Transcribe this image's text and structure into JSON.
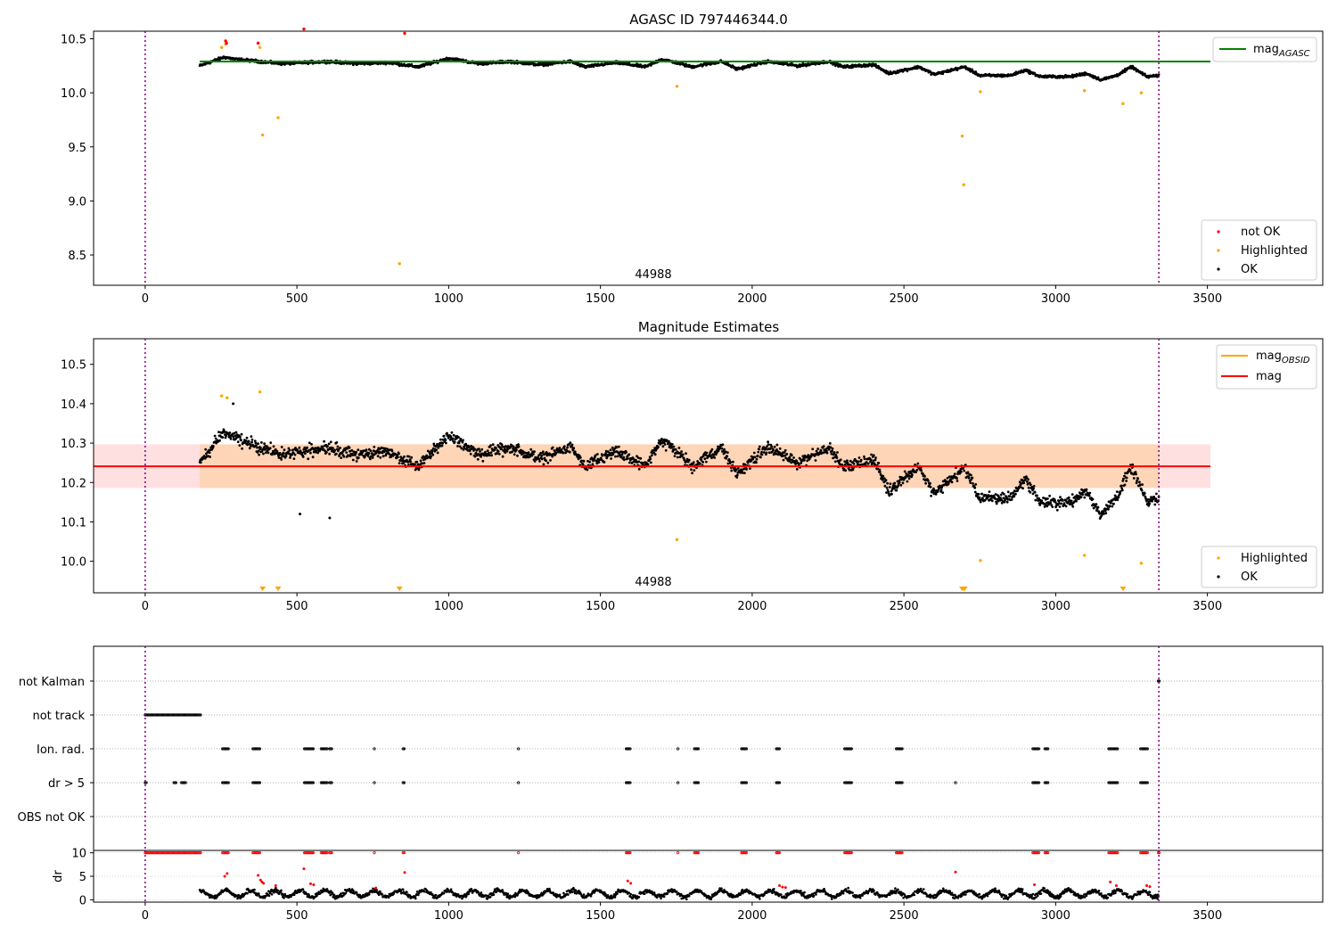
{
  "chart_data": [
    {
      "type": "scatter",
      "title": "AGASC ID 797446344.0",
      "xlabel": "",
      "ylabel": "",
      "xlim": [
        -170,
        3880
      ],
      "ylim": [
        8.22,
        10.57
      ],
      "xticks": [
        0,
        500,
        1000,
        1500,
        2000,
        2500,
        3000,
        3500
      ],
      "yticks": [
        8.5,
        9.0,
        9.5,
        10.0,
        10.5
      ],
      "ytick_labels": [
        "8.5",
        "9.0",
        "9.5",
        "10.0",
        "10.5"
      ],
      "annotation": "44988",
      "vlines": [
        0,
        3340
      ],
      "hline": {
        "name": "mag_AGASC",
        "value": 10.29,
        "x": [
          180,
          3510
        ],
        "color": "#008000"
      },
      "legend_upper": {
        "placement": "top-right",
        "entries": [
          {
            "label": "mag",
            "sub": "AGASC",
            "color": "#008000"
          }
        ]
      },
      "legend_lower": {
        "placement": "bottom-right",
        "entries": [
          {
            "label": "not OK",
            "color": "#ff0000"
          },
          {
            "label": "Highlighted",
            "color": "#ffa500"
          },
          {
            "label": "OK",
            "color": "#000000"
          }
        ]
      },
      "series": [
        {
          "name": "OK",
          "color": "#000000",
          "trend": [
            [
              180,
              10.25
            ],
            [
              260,
              10.33
            ],
            [
              300,
              10.31
            ],
            [
              380,
              10.29
            ],
            [
              450,
              10.27
            ],
            [
              600,
              10.29
            ],
            [
              700,
              10.27
            ],
            [
              800,
              10.28
            ],
            [
              900,
              10.24
            ],
            [
              1000,
              10.32
            ],
            [
              1100,
              10.27
            ],
            [
              1200,
              10.29
            ],
            [
              1300,
              10.26
            ],
            [
              1400,
              10.29
            ],
            [
              1450,
              10.24
            ],
            [
              1550,
              10.28
            ],
            [
              1650,
              10.24
            ],
            [
              1700,
              10.31
            ],
            [
              1750,
              10.28
            ],
            [
              1800,
              10.24
            ],
            [
              1900,
              10.29
            ],
            [
              1950,
              10.22
            ],
            [
              2050,
              10.29
            ],
            [
              2150,
              10.25
            ],
            [
              2250,
              10.29
            ],
            [
              2300,
              10.24
            ],
            [
              2400,
              10.26
            ],
            [
              2450,
              10.18
            ],
            [
              2550,
              10.24
            ],
            [
              2600,
              10.17
            ],
            [
              2700,
              10.24
            ],
            [
              2750,
              10.16
            ],
            [
              2850,
              10.16
            ],
            [
              2900,
              10.21
            ],
            [
              2950,
              10.15
            ],
            [
              3050,
              10.15
            ],
            [
              3100,
              10.18
            ],
            [
              3150,
              10.12
            ],
            [
              3200,
              10.16
            ],
            [
              3250,
              10.24
            ],
            [
              3300,
              10.15
            ],
            [
              3340,
              10.16
            ]
          ]
        },
        {
          "name": "Highlighted",
          "color": "#ffa500",
          "points": [
            [
              252,
              10.42
            ],
            [
              265,
              10.45
            ],
            [
              378,
              10.42
            ],
            [
              387,
              9.61
            ],
            [
              438,
              9.77
            ],
            [
              838,
              8.42
            ],
            [
              1752,
              10.06
            ],
            [
              2692,
              9.6
            ],
            [
              2697,
              9.15
            ],
            [
              2752,
              10.01
            ],
            [
              3095,
              10.02
            ],
            [
              3222,
              9.9
            ],
            [
              3282,
              10.0
            ]
          ]
        },
        {
          "name": "not OK",
          "color": "#ff0000",
          "points": [
            [
              265,
              10.48
            ],
            [
              268,
              10.46
            ],
            [
              372,
              10.46
            ],
            [
              523,
              10.59
            ],
            [
              855,
              10.55
            ]
          ]
        }
      ]
    },
    {
      "type": "scatter",
      "title": "Magnitude Estimates",
      "xlabel": "",
      "ylabel": "",
      "xlim": [
        -170,
        3880
      ],
      "ylim": [
        9.92,
        10.565
      ],
      "xticks": [
        0,
        500,
        1000,
        1500,
        2000,
        2500,
        3000,
        3500
      ],
      "yticks": [
        10.0,
        10.1,
        10.2,
        10.3,
        10.4,
        10.5
      ],
      "ytick_labels": [
        "10.0",
        "10.1",
        "10.2",
        "10.3",
        "10.4",
        "10.5"
      ],
      "annotation": "44988",
      "vlines": [
        0,
        3340
      ],
      "mag_line": {
        "name": "mag",
        "value": 10.241,
        "band": [
          10.186,
          10.297
        ],
        "x": [
          -170,
          3510
        ],
        "color": "#ff0000"
      },
      "mag_obsid_band": {
        "name": "mag_OBSID",
        "x": [
          180,
          3340
        ],
        "band": [
          10.186,
          10.297
        ],
        "color": "#ffa500"
      },
      "legend_upper": {
        "placement": "top-right",
        "entries": [
          {
            "label": "mag",
            "sub": "OBSID",
            "color": "#ffa500"
          },
          {
            "label": "mag",
            "sub": "",
            "color": "#ff0000"
          }
        ]
      },
      "legend_lower": {
        "placement": "bottom-right",
        "entries": [
          {
            "label": "Highlighted",
            "color": "#ffa500"
          },
          {
            "label": "OK",
            "color": "#000000"
          }
        ]
      },
      "series": [
        {
          "name": "OK",
          "color": "#000000",
          "extra_points": [
            [
              290,
              10.4
            ],
            [
              510,
              10.12
            ],
            [
              608,
              10.11
            ]
          ]
        },
        {
          "name": "Highlighted",
          "color": "#ffa500",
          "points": [
            [
              252,
              10.42
            ],
            [
              270,
              10.415
            ],
            [
              378,
              10.43
            ],
            [
              1752,
              10.055
            ],
            [
              2752,
              10.002
            ],
            [
              3095,
              10.015
            ],
            [
              3282,
              9.995
            ]
          ]
        },
        {
          "name": "Highlighted (below axis)",
          "color": "#ffa500",
          "markers_at_x": [
            387,
            438,
            838,
            2692,
            2697,
            2700,
            3222
          ]
        }
      ]
    },
    {
      "type": "scatter",
      "title": "",
      "xlim": [
        -170,
        3880
      ],
      "categories": [
        "not Kalman",
        "not track",
        "Ion. rad.",
        "dr > 5",
        "OBS not OK"
      ],
      "vlines": [
        0,
        3340
      ],
      "series": [
        {
          "name": "not Kalman",
          "segments": [
            [
              3338,
              3342
            ]
          ]
        },
        {
          "name": "not track",
          "segments": [
            [
              0,
              185
            ]
          ]
        },
        {
          "name": "Ion. rad.",
          "segments": [
            [
              255,
              275
            ],
            [
              355,
              380
            ],
            [
              525,
              555
            ],
            [
              580,
              600
            ],
            [
              608,
              615
            ],
            [
              755,
              757
            ],
            [
              850,
              855
            ],
            [
              1230,
              1233
            ],
            [
              1585,
              1600
            ],
            [
              1755,
              1758
            ],
            [
              1810,
              1825
            ],
            [
              1965,
              1982
            ],
            [
              2080,
              2092
            ],
            [
              2305,
              2330
            ],
            [
              2475,
              2495
            ],
            [
              2925,
              2945
            ],
            [
              2965,
              2975
            ],
            [
              3175,
              3205
            ],
            [
              3280,
              3305
            ]
          ]
        },
        {
          "name": "dr > 5",
          "segments": [
            [
              0,
              5
            ],
            [
              95,
              102
            ],
            [
              120,
              135
            ],
            [
              255,
              275
            ],
            [
              355,
              380
            ],
            [
              525,
              555
            ],
            [
              580,
              600
            ],
            [
              608,
              615
            ],
            [
              755,
              757
            ],
            [
              850,
              855
            ],
            [
              1230,
              1233
            ],
            [
              1585,
              1600
            ],
            [
              1755,
              1758
            ],
            [
              1810,
              1825
            ],
            [
              1965,
              1982
            ],
            [
              2080,
              2092
            ],
            [
              2305,
              2330
            ],
            [
              2475,
              2495
            ],
            [
              2670,
              2672
            ],
            [
              2925,
              2945
            ],
            [
              2965,
              2975
            ],
            [
              3175,
              3205
            ],
            [
              3280,
              3305
            ]
          ]
        },
        {
          "name": "OBS not OK",
          "segments": []
        }
      ]
    },
    {
      "type": "scatter",
      "title": "",
      "ylabel": "dr",
      "xlim": [
        -170,
        3880
      ],
      "ylim": [
        -0.5,
        10.5
      ],
      "xticks": [
        0,
        500,
        1000,
        1500,
        2000,
        2500,
        3000,
        3500
      ],
      "yticks": [
        0,
        5,
        10
      ],
      "ytick_labels": [
        "0",
        "5",
        "10"
      ],
      "vlines": [
        0,
        3340
      ],
      "series": [
        {
          "name": "OK",
          "color": "#000000",
          "x_range": [
            180,
            3340
          ],
          "typical": [
            0.3,
            3.0
          ]
        },
        {
          "name": "not OK",
          "color": "#ff0000",
          "clipped_at_10": [
            [
              0,
              185
            ],
            [
              255,
              275
            ],
            [
              355,
              380
            ],
            [
              525,
              555
            ],
            [
              580,
              600
            ],
            [
              608,
              615
            ],
            [
              755,
              757
            ],
            [
              850,
              855
            ],
            [
              1230,
              1233
            ],
            [
              1585,
              1600
            ],
            [
              1755,
              1758
            ],
            [
              1810,
              1825
            ],
            [
              1965,
              1982
            ],
            [
              2080,
              2092
            ],
            [
              2305,
              2330
            ],
            [
              2475,
              2495
            ],
            [
              2925,
              2945
            ],
            [
              2965,
              2975
            ],
            [
              3175,
              3205
            ],
            [
              3280,
              3305
            ],
            [
              3338,
              3342
            ]
          ],
          "points": [
            [
              262,
              5.0
            ],
            [
              270,
              5.6
            ],
            [
              372,
              5.2
            ],
            [
              380,
              4.2
            ],
            [
              385,
              3.8
            ],
            [
              390,
              3.5
            ],
            [
              430,
              3.0
            ],
            [
              523,
              6.6
            ],
            [
              545,
              3.4
            ],
            [
              555,
              3.2
            ],
            [
              760,
              2.5
            ],
            [
              855,
              5.8
            ],
            [
              1590,
              4.0
            ],
            [
              1600,
              3.5
            ],
            [
              2090,
              3.0
            ],
            [
              2100,
              2.7
            ],
            [
              2110,
              2.6
            ],
            [
              2670,
              5.9
            ],
            [
              2930,
              3.2
            ],
            [
              3180,
              3.8
            ],
            [
              3200,
              3.0
            ],
            [
              3300,
              3.0
            ],
            [
              3310,
              2.8
            ]
          ]
        }
      ]
    }
  ]
}
